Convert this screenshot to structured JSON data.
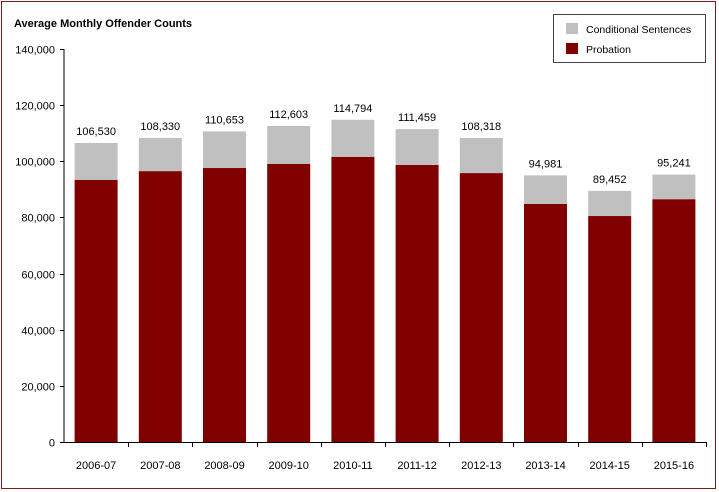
{
  "chart_data": {
    "type": "bar",
    "stacked": true,
    "title": "Average Monthly Offender Counts",
    "categories": [
      "2006-07",
      "2007-08",
      "2008-09",
      "2009-10",
      "2010-11",
      "2011-12",
      "2012-13",
      "2013-14",
      "2014-15",
      "2015-16"
    ],
    "series": [
      {
        "name": "Probation",
        "color": "#800000",
        "values": [
          93400,
          96500,
          97600,
          99100,
          101600,
          98700,
          95800,
          84800,
          80500,
          86500
        ]
      },
      {
        "name": "Conditional Sentences",
        "color": "#c0c0c0",
        "values": [
          13130,
          11830,
          13053,
          13503,
          13194,
          12759,
          12518,
          10181,
          8952,
          8741
        ]
      }
    ],
    "totals": [
      106530,
      108330,
      110653,
      112603,
      114794,
      111459,
      108318,
      94981,
      89452,
      95241
    ],
    "total_labels": [
      "106,530",
      "108,330",
      "110,653",
      "112,603",
      "114,794",
      "111,459",
      "108,318",
      "94,981",
      "89,452",
      "95,241"
    ],
    "ylim": [
      0,
      140000
    ],
    "yticks": [
      0,
      20000,
      40000,
      60000,
      80000,
      100000,
      120000,
      140000
    ],
    "ytick_labels": [
      "0",
      "20,000",
      "40,000",
      "60,000",
      "80,000",
      "100,000",
      "120,000",
      "140,000"
    ],
    "legend": [
      "Conditional Sentences",
      "Probation"
    ],
    "legend_position": "top-right",
    "xlabel": "",
    "ylabel": ""
  }
}
